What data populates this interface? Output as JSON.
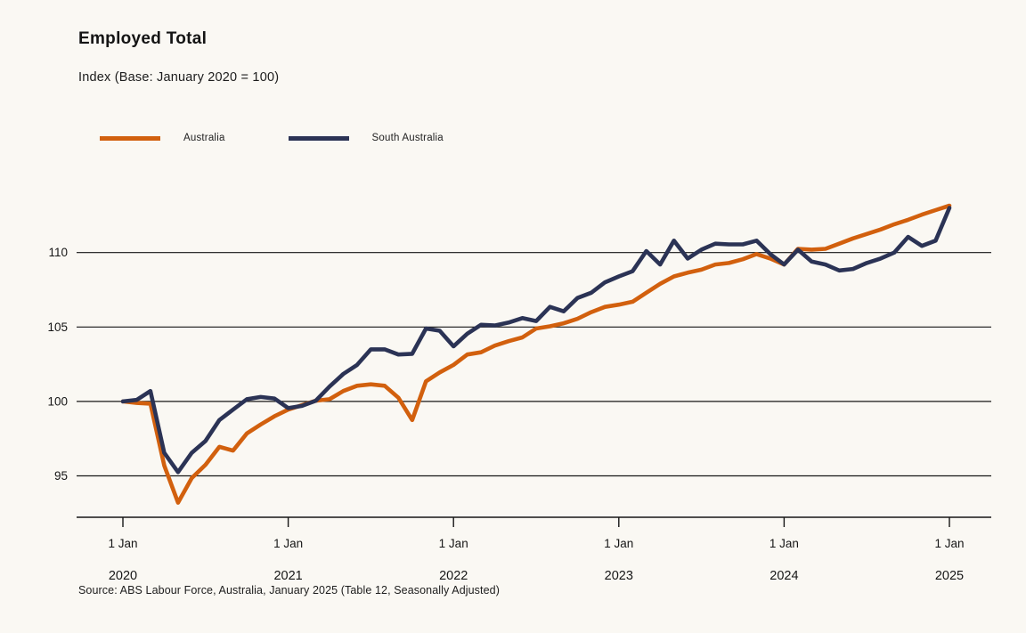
{
  "page": {
    "background_color": "#FAF8F3",
    "source_note": "Source: ABS Labour Force, Australia, January 2025 (Table 12, Seasonally Adjusted)"
  },
  "chart_data": {
    "type": "line",
    "title": "Employed Total",
    "subtitle": "Index (Base: January 2020 = 100)",
    "frequency": "monthly",
    "legend_position": "top-left",
    "grid": "horizontal",
    "yticks": [
      95,
      100,
      105,
      110
    ],
    "ylim_drawn": [
      92.2,
      113.3
    ],
    "x_axis_ticks": [
      {
        "day_label": "1 Jan",
        "year_label": "2020"
      },
      {
        "day_label": "1 Jan",
        "year_label": "2021"
      },
      {
        "day_label": "1 Jan",
        "year_label": "2022"
      },
      {
        "day_label": "1 Jan",
        "year_label": "2023"
      },
      {
        "day_label": "1 Jan",
        "year_label": "2024"
      },
      {
        "day_label": "1 Jan",
        "year_label": "2025"
      }
    ],
    "x": [
      "2020-01",
      "2020-02",
      "2020-03",
      "2020-04",
      "2020-05",
      "2020-06",
      "2020-07",
      "2020-08",
      "2020-09",
      "2020-10",
      "2020-11",
      "2020-12",
      "2021-01",
      "2021-02",
      "2021-03",
      "2021-04",
      "2021-05",
      "2021-06",
      "2021-07",
      "2021-08",
      "2021-09",
      "2021-10",
      "2021-11",
      "2021-12",
      "2022-01",
      "2022-02",
      "2022-03",
      "2022-04",
      "2022-05",
      "2022-06",
      "2022-07",
      "2022-08",
      "2022-09",
      "2022-10",
      "2022-11",
      "2022-12",
      "2023-01",
      "2023-02",
      "2023-03",
      "2023-04",
      "2023-05",
      "2023-06",
      "2023-07",
      "2023-08",
      "2023-09",
      "2023-10",
      "2023-11",
      "2023-12",
      "2024-01",
      "2024-02",
      "2024-03",
      "2024-04",
      "2024-05",
      "2024-06",
      "2024-07",
      "2024-08",
      "2024-09",
      "2024-10",
      "2024-11",
      "2024-12",
      "2025-01"
    ],
    "series": [
      {
        "name": "Australia",
        "color": "#D2600E",
        "values": [
          100,
          99.9,
          99.85,
          95.7,
          93.2,
          94.85,
          95.75,
          96.95,
          96.7,
          97.85,
          98.45,
          99.0,
          99.45,
          99.75,
          100.05,
          100.15,
          100.7,
          101.05,
          101.15,
          101.05,
          100.25,
          98.75,
          101.35,
          101.95,
          102.45,
          103.15,
          103.3,
          103.75,
          104.05,
          104.3,
          104.9,
          105.05,
          105.25,
          105.55,
          106.0,
          106.35,
          106.5,
          106.7,
          107.3,
          107.9,
          108.4,
          108.65,
          108.85,
          109.2,
          109.3,
          109.55,
          109.9,
          109.6,
          109.2,
          110.25,
          110.2,
          110.25,
          110.6,
          110.95,
          111.25,
          111.55,
          111.9,
          112.2,
          112.55,
          112.85,
          113.15
        ]
      },
      {
        "name": "South Australia",
        "color": "#2B3355",
        "values": [
          100,
          100.1,
          100.7,
          96.55,
          95.25,
          96.55,
          97.35,
          98.75,
          99.45,
          100.15,
          100.3,
          100.2,
          99.55,
          99.7,
          100.05,
          101.0,
          101.85,
          102.45,
          103.5,
          103.5,
          103.15,
          103.2,
          104.9,
          104.75,
          103.7,
          104.55,
          105.15,
          105.1,
          105.3,
          105.6,
          105.4,
          106.35,
          106.05,
          106.95,
          107.3,
          108.0,
          108.4,
          108.75,
          110.1,
          109.2,
          110.8,
          109.6,
          110.2,
          110.6,
          110.55,
          110.55,
          110.8,
          109.9,
          109.2,
          110.2,
          109.4,
          109.2,
          108.8,
          108.9,
          109.3,
          109.6,
          110.0,
          111.05,
          110.45,
          110.8,
          113.0
        ]
      }
    ],
    "axis_color": "#161616",
    "source": "Source: ABS Labour Force, Australia, January 2025 (Table 12, Seasonally Adjusted)"
  }
}
